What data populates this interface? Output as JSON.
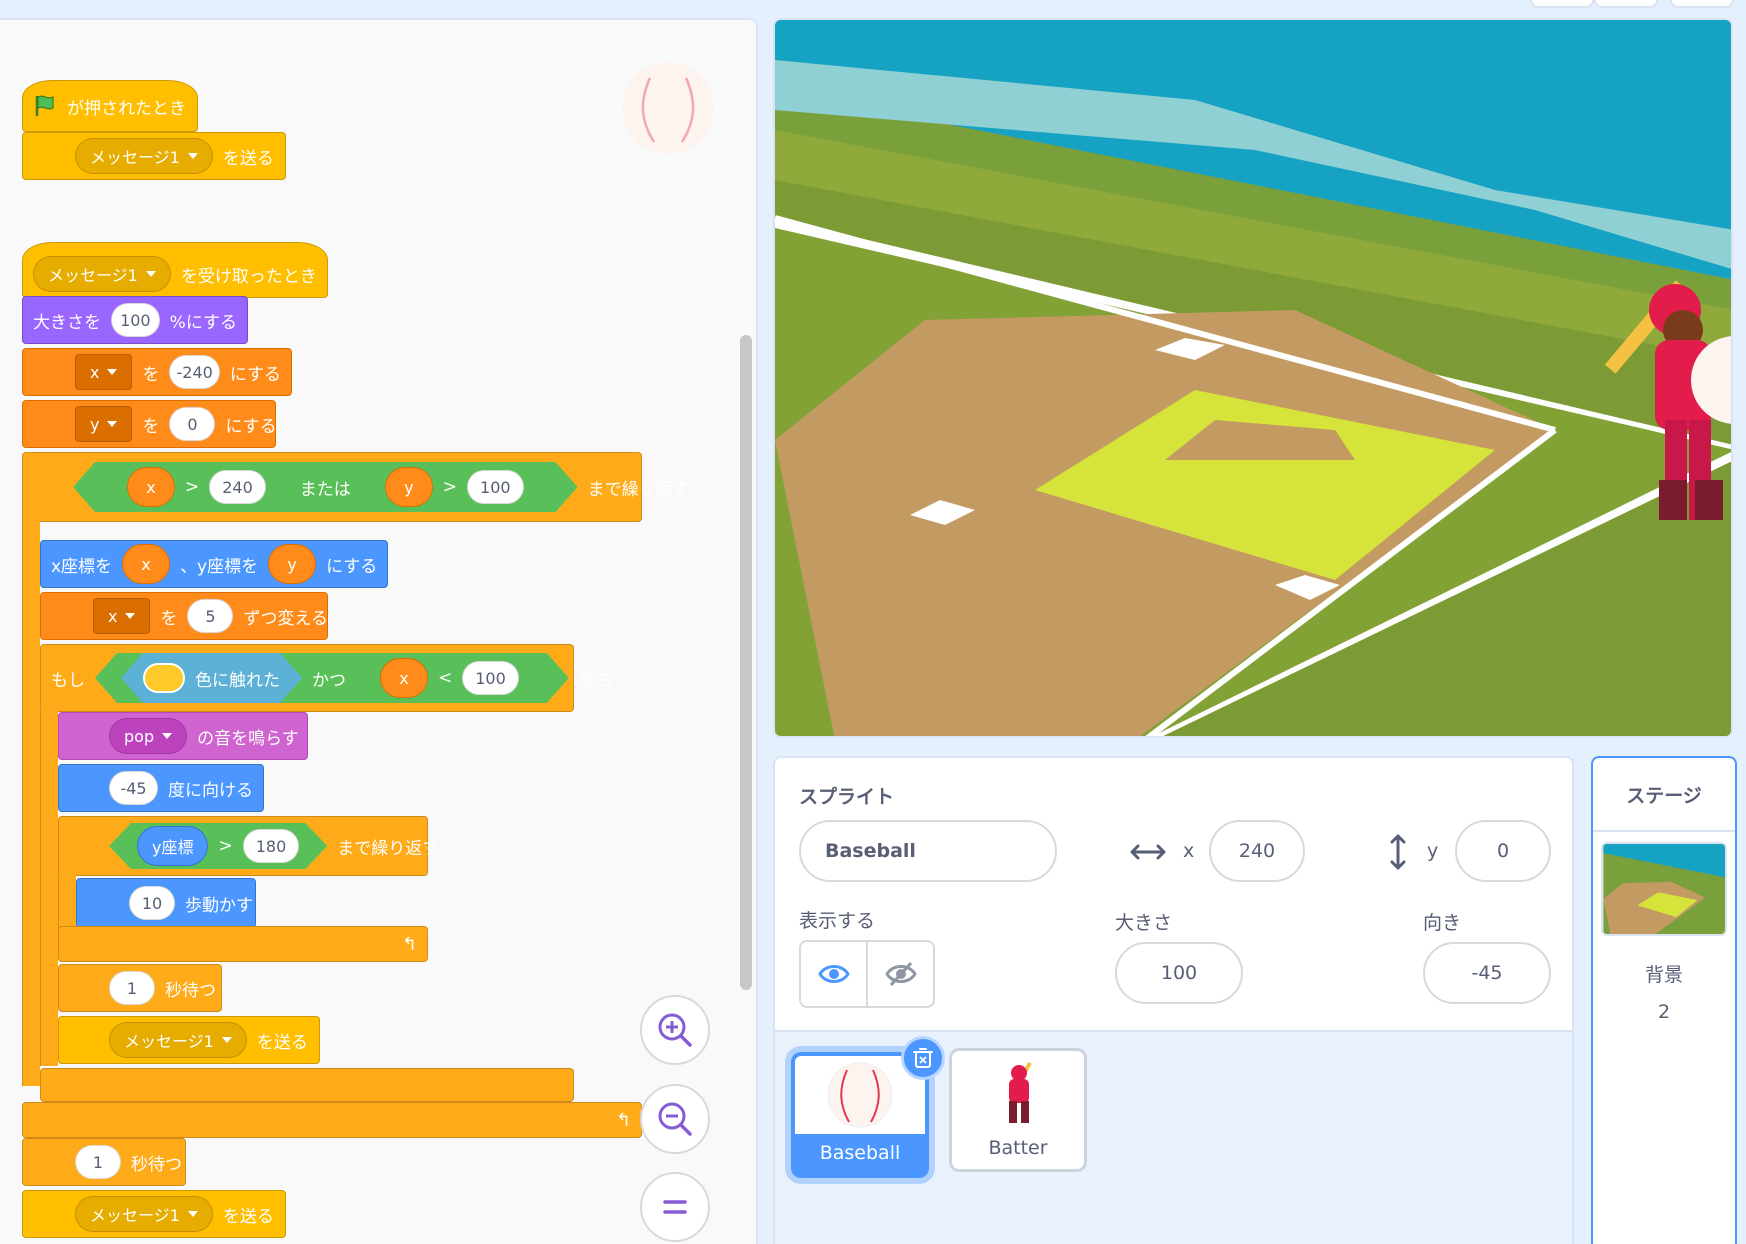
{
  "code": {
    "script1": {
      "hat_label": "が押されたとき",
      "broadcast_menu": "メッセージ1",
      "broadcast_label": "を送る"
    },
    "script2": {
      "hat_menu": "メッセージ1",
      "hat_label": "を受け取ったとき",
      "size_pre": "大きさを",
      "size_val": "100",
      "size_post": "%にする",
      "setx_var": "x",
      "setx_mid": "を",
      "setx_val": "-240",
      "setx_post": "にする",
      "sety_var": "y",
      "sety_mid": "を",
      "sety_val": "0",
      "sety_post": "にする",
      "until_a": "x",
      "until_gt1": ">",
      "until_b": "240",
      "until_or": "または",
      "until_c": "y",
      "until_gt2": ">",
      "until_d": "100",
      "until_label": "まで繰り返す",
      "goto_pre": "x座標を",
      "goto_x": "x",
      "goto_mid": "、y座標を",
      "goto_y": "y",
      "goto_post": "にする",
      "change_var": "x",
      "change_mid": "を",
      "change_val": "5",
      "change_post": "ずつ変える",
      "if_label": "もし",
      "touch_label": "色に触れた",
      "and_label": "かつ",
      "lt_a": "x",
      "lt_op": "<",
      "lt_b": "100",
      "then_label": "なら",
      "sound_menu": "pop",
      "sound_label": "の音を鳴らす",
      "point_val": "-45",
      "point_label": "度に向ける",
      "until2_a": "y座標",
      "until2_op": ">",
      "until2_b": "180",
      "until2_label": "まで繰り返す",
      "move_val": "10",
      "move_label": "歩動かす",
      "wait_val": "1",
      "wait_label": "秒待つ",
      "bcast_menu": "メッセージ1",
      "bcast_label": "を送る",
      "wait2_val": "1",
      "wait2_label": "秒待つ",
      "bcast2_menu": "メッセージ1",
      "bcast2_label": "を送る"
    }
  },
  "sprite_info": {
    "sprite_label": "スプライト",
    "sprite_name": "Baseball",
    "x_label": "x",
    "x_value": "240",
    "y_label": "y",
    "y_value": "0",
    "show_label": "表示する",
    "size_label": "大きさ",
    "size_value": "100",
    "direction_label": "向き",
    "direction_value": "-45"
  },
  "sprites": [
    {
      "name": "Baseball",
      "selected": true
    },
    {
      "name": "Batter",
      "selected": false
    }
  ],
  "stage_panel": {
    "title": "ステージ",
    "backdrop_label": "背景",
    "backdrop_count": "2"
  },
  "colors": {
    "events": "#ffbf00",
    "control": "#ffab19",
    "motion": "#4c97ff",
    "looks": "#9966ff",
    "sound": "#cf63cf",
    "variables": "#ff8c1a",
    "operators": "#59c059",
    "sensing": "#5cb1d6",
    "accent": "#4c97ff"
  }
}
